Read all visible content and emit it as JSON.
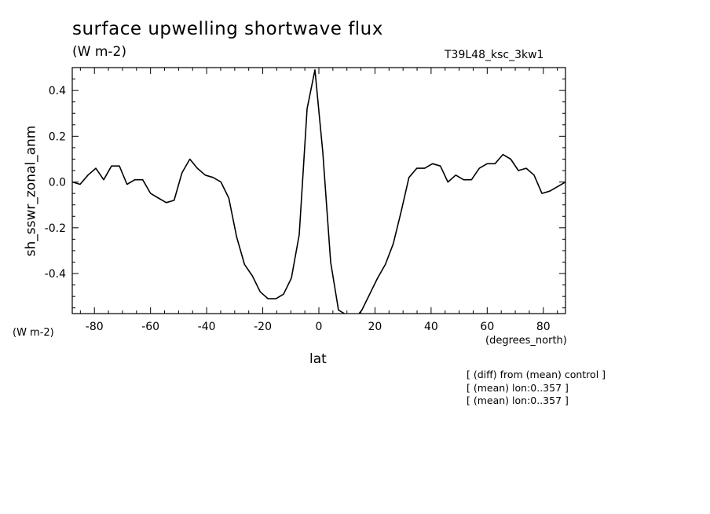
{
  "chart_data": {
    "type": "line",
    "title": "surface upwelling shortwave flux",
    "subtitle": "(W m-2)",
    "run_label": "T39L48_ksc_3kw1",
    "ylabel": "sh_sswr_zonal_anm",
    "yunit": "(W m-2)",
    "xlabel": "lat",
    "xunit": "(degrees_north)",
    "notes": [
      "[ (diff) from (mean) control ]",
      "[ (mean) lon:0..357 ]",
      "[ (mean) lon:0..357 ]"
    ],
    "xlim": [
      -87.9,
      87.9
    ],
    "ylim": [
      -0.575,
      0.5
    ],
    "x_ticks": [
      -80,
      -60,
      -40,
      -20,
      0,
      20,
      40,
      60,
      80
    ],
    "x_tick_labels": [
      "-80",
      "-60",
      "-40",
      "-20",
      "0",
      "20",
      "40",
      "60",
      "80"
    ],
    "y_ticks": [
      -0.4,
      -0.2,
      0.0,
      0.2,
      0.4
    ],
    "y_tick_labels": [
      "-0.4",
      "-0.2",
      "0.0",
      "0.2",
      "0.4"
    ],
    "grid": false,
    "series": [
      {
        "x": [
          -87.9,
          -85.1,
          -82.3,
          -79.5,
          -76.7,
          -73.9,
          -71.1,
          -68.4,
          -65.6,
          -62.8,
          -60.0,
          -57.2,
          -54.4,
          -51.6,
          -48.8,
          -46.0,
          -43.3,
          -40.5,
          -37.7,
          -34.9,
          -32.1,
          -29.3,
          -26.5,
          -23.7,
          -20.9,
          -18.1,
          -15.3,
          -12.6,
          -9.8,
          -7.0,
          -4.2,
          -1.4,
          1.4,
          4.2,
          7.0,
          9.8,
          12.6,
          15.3,
          18.1,
          20.9,
          23.7,
          26.5,
          29.3,
          32.1,
          34.9,
          37.7,
          40.5,
          43.3,
          46.0,
          48.8,
          51.6,
          54.4,
          57.2,
          60.0,
          62.8,
          65.6,
          68.4,
          71.1,
          73.9,
          76.7,
          79.5,
          82.3,
          85.1,
          87.9
        ],
        "values": [
          0.0,
          -0.01,
          0.03,
          0.06,
          0.01,
          0.07,
          0.07,
          -0.01,
          0.01,
          0.01,
          -0.05,
          -0.07,
          -0.09,
          -0.08,
          0.04,
          0.1,
          0.06,
          0.03,
          0.02,
          0.0,
          -0.07,
          -0.24,
          -0.36,
          -0.41,
          -0.48,
          -0.51,
          -0.51,
          -0.49,
          -0.42,
          -0.23,
          0.32,
          0.49,
          0.13,
          -0.35,
          -0.56,
          -0.58,
          -0.6,
          -0.56,
          -0.49,
          -0.42,
          -0.36,
          -0.27,
          -0.13,
          0.02,
          0.06,
          0.06,
          0.08,
          0.07,
          0.0,
          0.03,
          0.01,
          0.01,
          0.06,
          0.08,
          0.08,
          0.12,
          0.1,
          0.05,
          0.06,
          0.03,
          -0.05,
          -0.04,
          -0.02,
          0.0
        ]
      }
    ]
  }
}
